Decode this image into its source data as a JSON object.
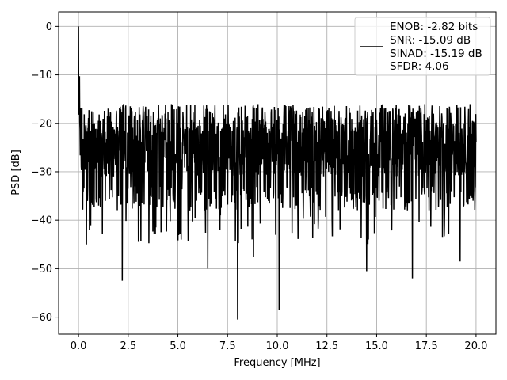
{
  "chart_data": {
    "type": "line",
    "xlabel": "Frequency [MHz]",
    "ylabel": "PSD [dB]",
    "xlim": [
      -1.0,
      21.0
    ],
    "ylim": [
      -63.5,
      3.0
    ],
    "xticks": [
      0.0,
      2.5,
      5.0,
      7.5,
      10.0,
      12.5,
      15.0,
      17.5,
      20.0
    ],
    "xtick_labels": [
      "0.0",
      "2.5",
      "5.0",
      "7.5",
      "10.0",
      "12.5",
      "15.0",
      "17.5",
      "20.0"
    ],
    "yticks": [
      0,
      -10,
      -20,
      -30,
      -40,
      -50,
      -60
    ],
    "ytick_labels": [
      "0",
      "−10",
      "−20",
      "−30",
      "−40",
      "−50",
      "−60"
    ],
    "grid": true,
    "legend_position": "top-right",
    "legend_lines": [
      "ENOB: -2.82 bits",
      "SNR: -15.09 dB",
      "SINAD: -15.19 dB",
      "SFDR: 4.06"
    ],
    "series": [
      {
        "color": "#000000",
        "num_points": 1600,
        "peak": {
          "x": 0.0,
          "y": 0.0
        },
        "noise_floor_mean_db": -26.0,
        "noise_band_db": [
          -36.0,
          -16.0
        ],
        "notable_dips": [
          {
            "x": 0.4,
            "y": -45.0
          },
          {
            "x": 2.2,
            "y": -52.5
          },
          {
            "x": 6.5,
            "y": -50.0
          },
          {
            "x": 8.0,
            "y": -60.5
          },
          {
            "x": 8.8,
            "y": -47.5
          },
          {
            "x": 10.1,
            "y": -58.5
          },
          {
            "x": 14.5,
            "y": -50.5
          },
          {
            "x": 16.8,
            "y": -52.0
          },
          {
            "x": 19.2,
            "y": -48.5
          }
        ]
      }
    ]
  }
}
